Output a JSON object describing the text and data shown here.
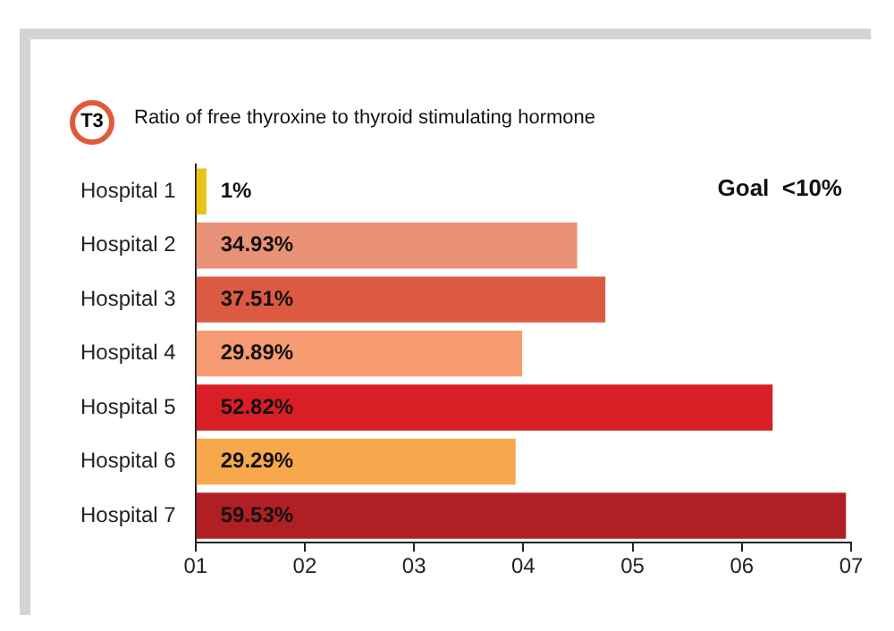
{
  "chart_data": {
    "type": "bar",
    "orientation": "horizontal",
    "title": "Ratio of free thyroxine to thyroid stimulating hormone",
    "annotations": [
      "T3",
      "Goal  <10%",
      "01",
      "02",
      "03",
      "04",
      "05",
      "06",
      "07"
    ],
    "categories": [
      "Hospital 1",
      "Hospital 2",
      "Hospital 3",
      "Hospital 4",
      "Hospital 5",
      "Hospital 6",
      "Hospital 7"
    ],
    "values": [
      1,
      34.93,
      37.51,
      29.89,
      52.82,
      29.29,
      59.53
    ],
    "value_labels": [
      "1%",
      "34.93%",
      "37.51%",
      "29.89%",
      "52.82%",
      "29.29%",
      "59.53%"
    ],
    "colors": [
      "#e8c41a",
      "#ea9277",
      "#dd5a42",
      "#f69b72",
      "#da1e26",
      "#f7a84c",
      "#b01f24"
    ],
    "xlim": [
      0,
      60
    ],
    "xticks": [
      {
        "value": 0,
        "label": null
      },
      {
        "value": 10,
        "label": null
      },
      {
        "value": 20,
        "label": null
      },
      {
        "value": 30,
        "label": null
      },
      {
        "value": 40,
        "label": null
      },
      {
        "value": 50,
        "label": null
      },
      {
        "value": 60,
        "label": null
      }
    ],
    "legend": false
  }
}
